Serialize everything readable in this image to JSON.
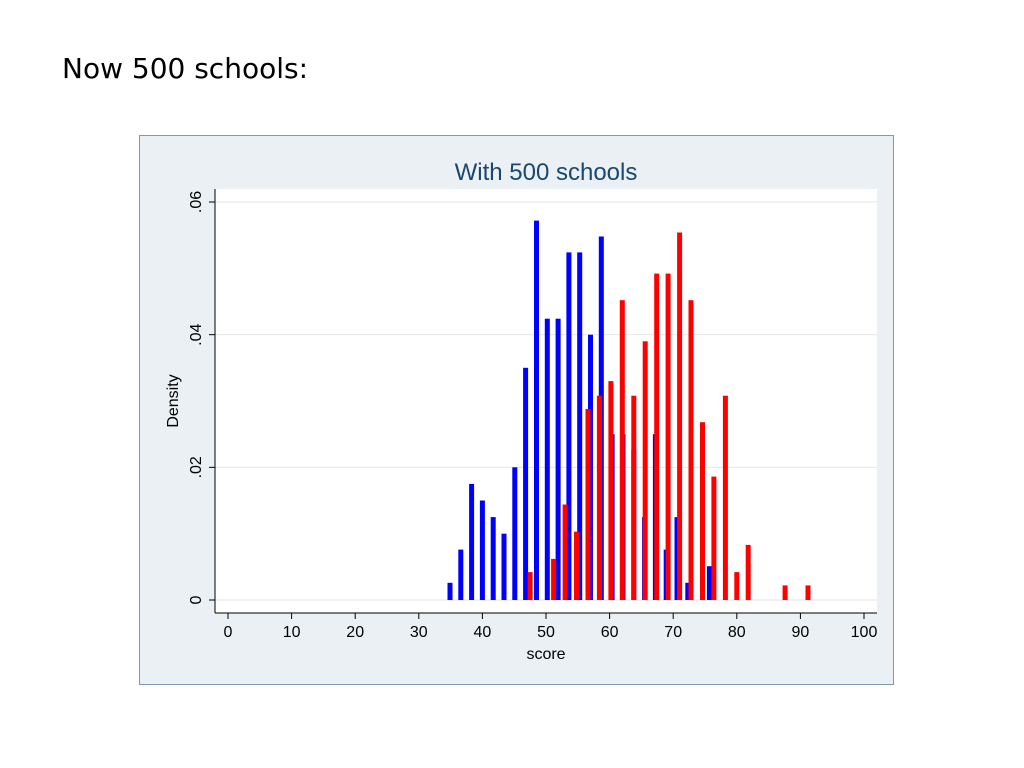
{
  "slide": {
    "heading": "Now 500 schools:"
  },
  "chart_data": {
    "type": "bar",
    "title": "With 500 schools",
    "xlabel": "score",
    "ylabel": "Density",
    "xlim": [
      0,
      100
    ],
    "ylim": [
      0,
      0.06
    ],
    "x_ticks": [
      0,
      10,
      20,
      30,
      40,
      50,
      60,
      70,
      80,
      90,
      100
    ],
    "x_tick_labels": [
      "0",
      "10",
      "20",
      "30",
      "40",
      "50",
      "60",
      "70",
      "80",
      "90",
      "100"
    ],
    "y_ticks": [
      0,
      0.02,
      0.04,
      0.06
    ],
    "y_tick_labels": [
      "0",
      ".02",
      ".04",
      ".06"
    ],
    "grid": true,
    "legend": "none",
    "series": [
      {
        "color": "#0000ff",
        "x": [
          34.9,
          36.6,
          38.3,
          40.0,
          41.7,
          43.4,
          45.1,
          46.8,
          48.5,
          50.2,
          51.9,
          53.6,
          55.3,
          57.0,
          58.7,
          60.4,
          62.1,
          63.8,
          65.5,
          67.2,
          68.9,
          70.6,
          72.3,
          75.7
        ],
        "values": [
          0.0026,
          0.0076,
          0.0175,
          0.015,
          0.0125,
          0.01,
          0.02,
          0.035,
          0.0572,
          0.0424,
          0.0424,
          0.0524,
          0.0524,
          0.04,
          0.0548,
          0.025,
          0.025,
          0.0226,
          0.0125,
          0.025,
          0.0076,
          0.0125,
          0.0026,
          0.0051
        ]
      },
      {
        "color": "#ff0000",
        "x": [
          47.5,
          51.2,
          53.0,
          54.8,
          56.6,
          58.4,
          60.2,
          62.0,
          63.8,
          65.6,
          67.4,
          69.2,
          71.0,
          72.8,
          74.6,
          76.4,
          78.2,
          80.0,
          81.8,
          87.6,
          91.2
        ],
        "values": [
          0.0042,
          0.0062,
          0.0144,
          0.0103,
          0.0288,
          0.0308,
          0.033,
          0.0452,
          0.0308,
          0.039,
          0.0492,
          0.0492,
          0.0554,
          0.0452,
          0.0268,
          0.0186,
          0.0308,
          0.0042,
          0.0083,
          0.0022,
          0.0022
        ]
      }
    ]
  }
}
